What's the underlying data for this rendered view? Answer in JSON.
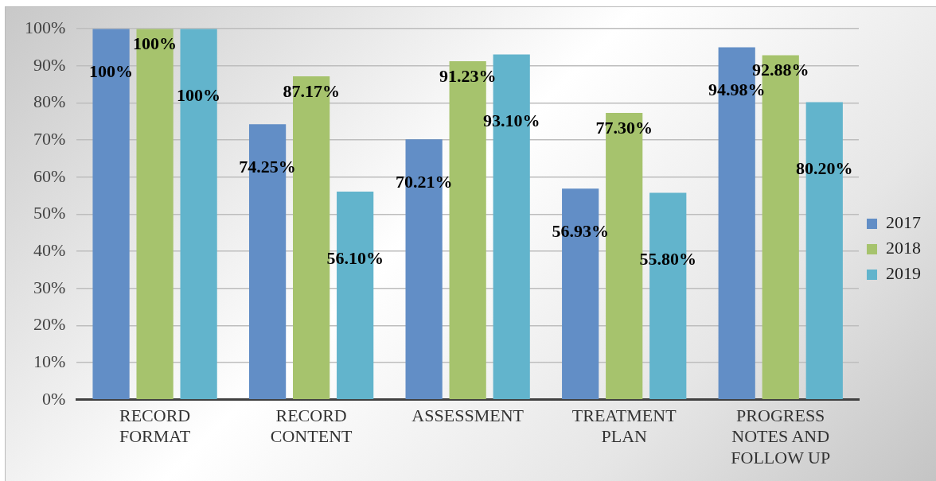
{
  "chart_data": {
    "type": "bar",
    "categories": [
      "RECORD FORMAT",
      "RECORD CONTENT",
      "ASSESSMENT",
      "TREATMENT PLAN",
      "PROGRESS NOTES AND FOLLOW UP"
    ],
    "series": [
      {
        "name": "2017",
        "color": "#628ec6",
        "values": [
          100,
          74.25,
          70.21,
          56.93,
          94.98
        ],
        "value_labels": [
          "100%",
          "74.25%",
          "70.21%",
          "56.93%",
          "94.98%"
        ]
      },
      {
        "name": "2018",
        "color": "#a6c36d",
        "values": [
          100,
          87.17,
          91.23,
          77.3,
          92.88
        ],
        "value_labels": [
          "100%",
          "87.17%",
          "91.23%",
          "77.30%",
          "92.88%"
        ]
      },
      {
        "name": "2019",
        "color": "#62b4cc",
        "values": [
          100,
          56.1,
          93.1,
          55.8,
          80.2
        ],
        "value_labels": [
          "100%",
          "56.10%",
          "93.10%",
          "55.80%",
          "80.20%"
        ]
      }
    ],
    "ylim": [
      0,
      100
    ],
    "yticks": [
      {
        "value": 0,
        "label": "0%"
      },
      {
        "value": 10,
        "label": "10%"
      },
      {
        "value": 20,
        "label": "20%"
      },
      {
        "value": 30,
        "label": "30%"
      },
      {
        "value": 40,
        "label": "40%"
      },
      {
        "value": 50,
        "label": "50%"
      },
      {
        "value": 60,
        "label": "60%"
      },
      {
        "value": 70,
        "label": "70%"
      },
      {
        "value": 80,
        "label": "80%"
      },
      {
        "value": 90,
        "label": "90%"
      },
      {
        "value": 100,
        "label": "100%"
      }
    ],
    "grid": "y",
    "legend": "right"
  }
}
